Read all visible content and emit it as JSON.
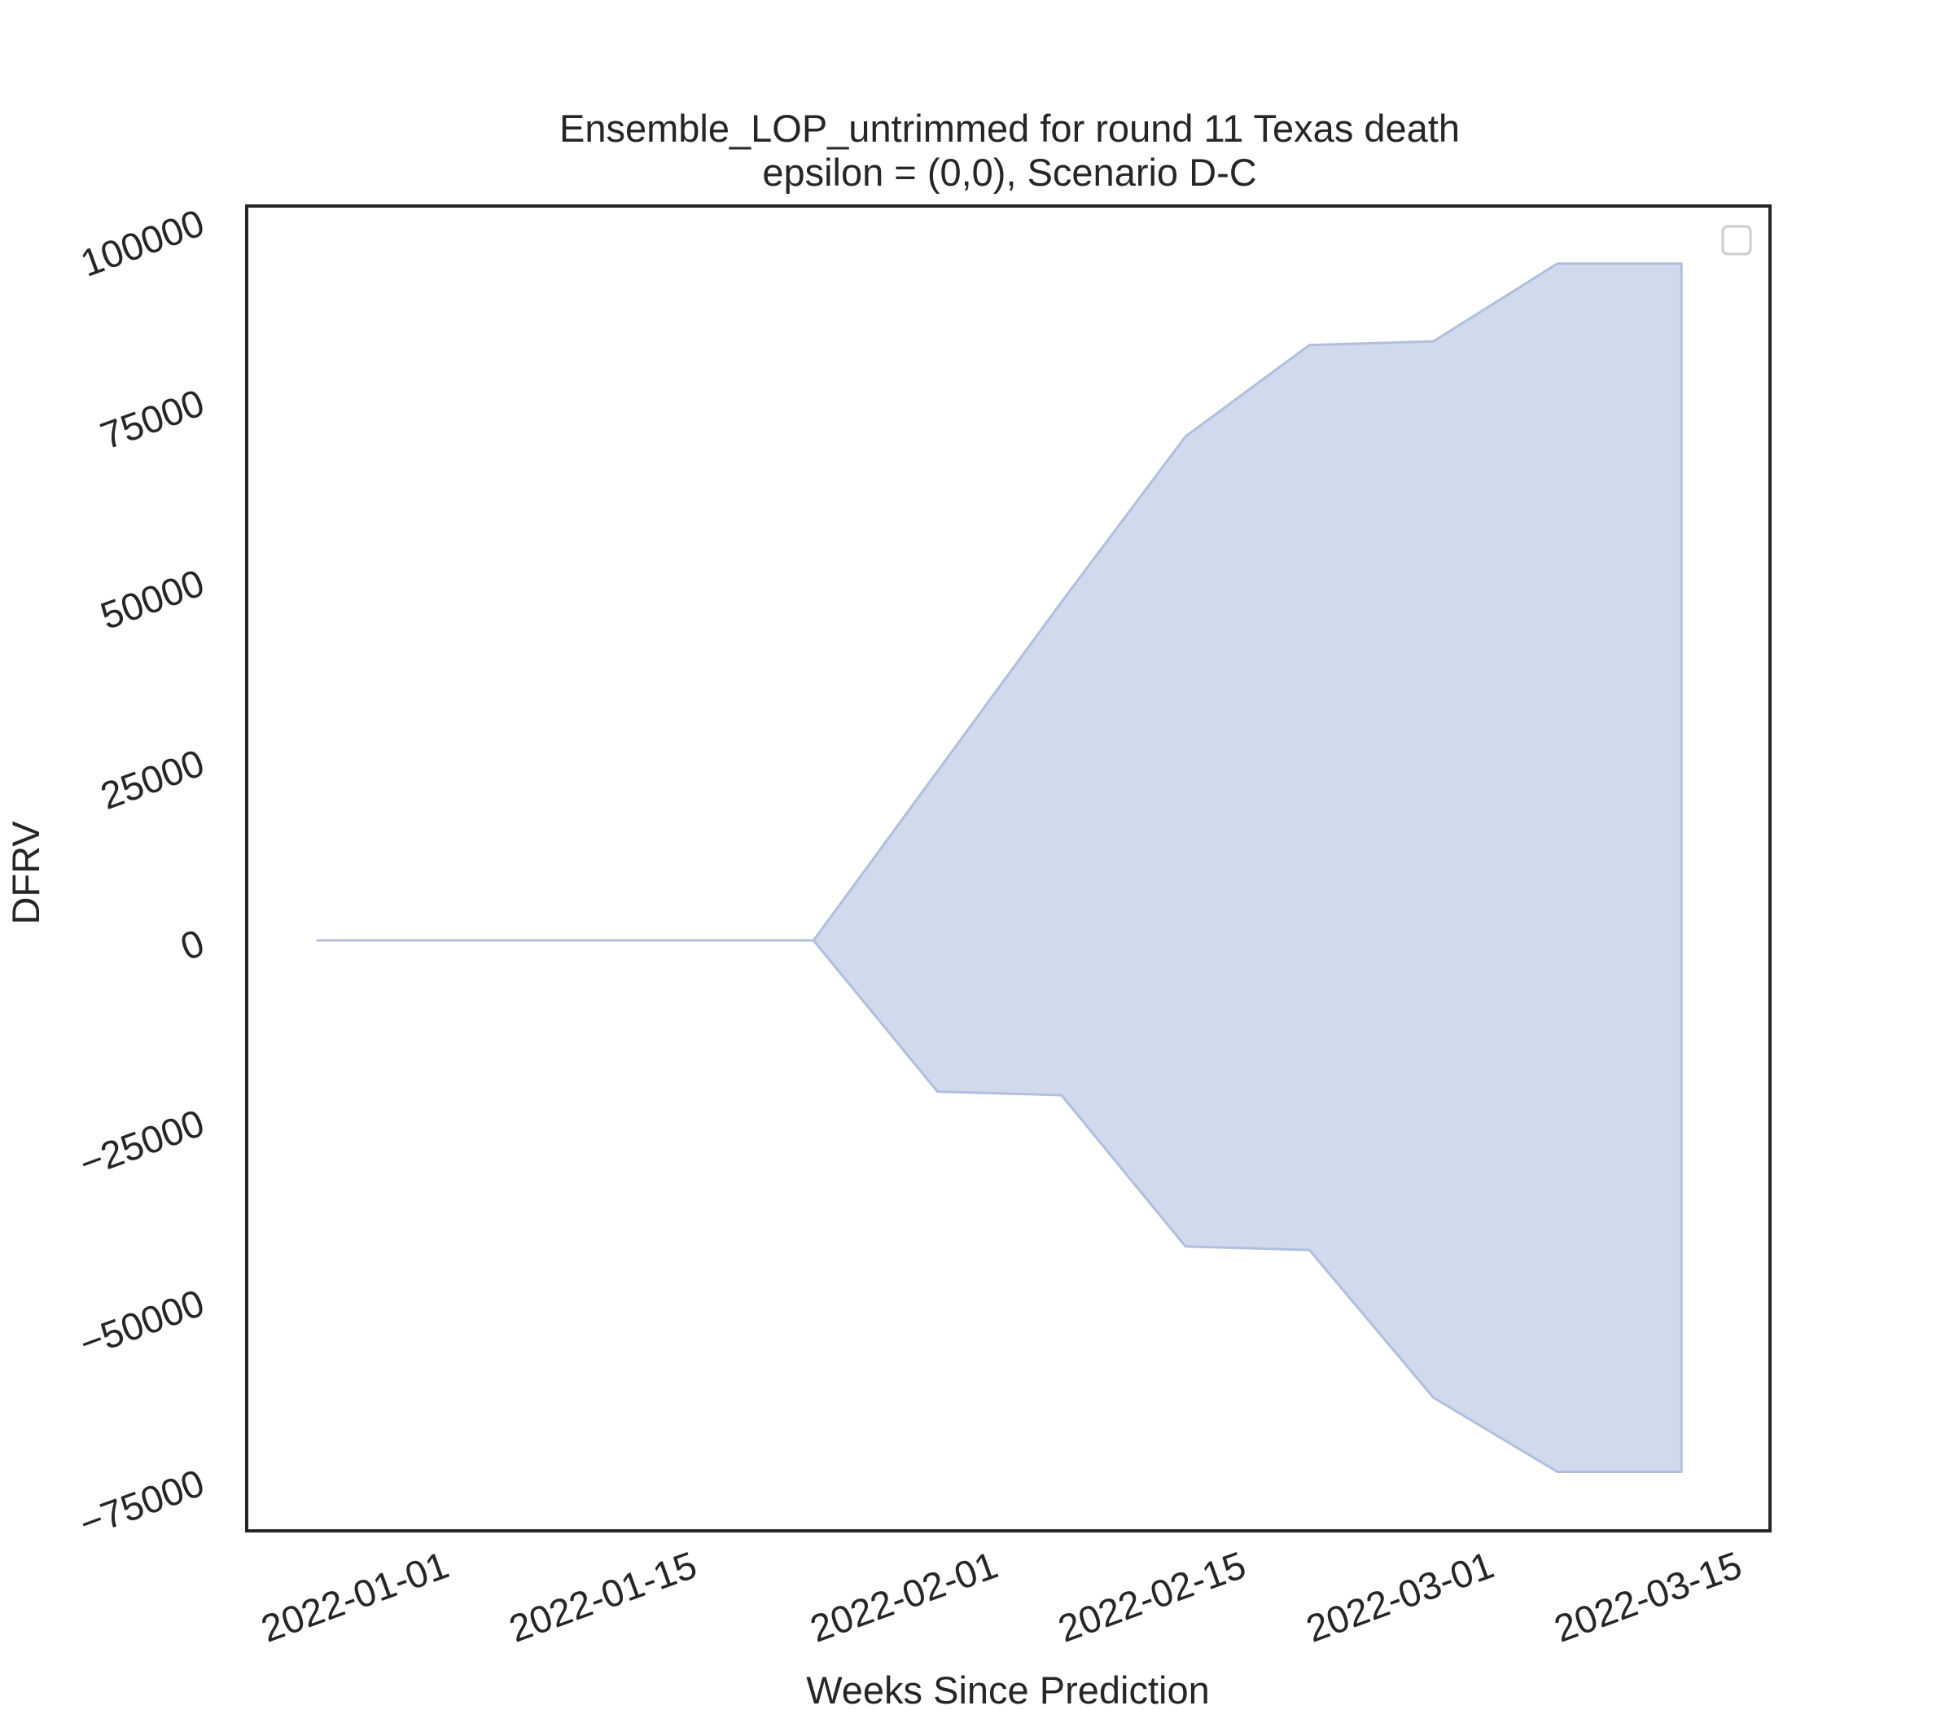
{
  "chart_data": {
    "type": "area",
    "title": "Ensemble_LOP_untrimmed for round 11 Texas death",
    "subtitle": "epsilon = (0,0), Scenario D-C",
    "xlabel": "Weeks Since Prediction",
    "ylabel": "DFRV",
    "x_ticks": [
      "2022-01-01",
      "2022-01-15",
      "2022-02-01",
      "2022-02-15",
      "2022-03-01",
      "2022-03-15"
    ],
    "y_ticks": [
      "−75000",
      "−50000",
      "−25000",
      "0",
      "25000",
      "50000",
      "75000",
      "100000"
    ],
    "y_tick_values": [
      -75000,
      -50000,
      -25000,
      0,
      25000,
      50000,
      75000,
      100000
    ],
    "xlim": [
      "2021-12-21",
      "2022-03-17"
    ],
    "ylim": [
      -82000,
      102000
    ],
    "grid": false,
    "legend": "top-right (empty)",
    "band": {
      "color": "#b0bfdf",
      "fill_opacity": 0.58,
      "x": [
        "2021-12-25",
        "2022-01-01",
        "2022-01-08",
        "2022-01-15",
        "2022-01-22",
        "2022-01-29",
        "2022-02-05",
        "2022-02-12",
        "2022-02-19",
        "2022-02-26",
        "2022-03-05",
        "2022-03-12"
      ],
      "lower": [
        0,
        0,
        0,
        0,
        0,
        -21000,
        -21500,
        -42500,
        -43000,
        -63500,
        -73800,
        -73800
      ],
      "upper": [
        0,
        0,
        0,
        0,
        0,
        23500,
        47000,
        70000,
        82700,
        83200,
        94000,
        94000
      ]
    }
  }
}
